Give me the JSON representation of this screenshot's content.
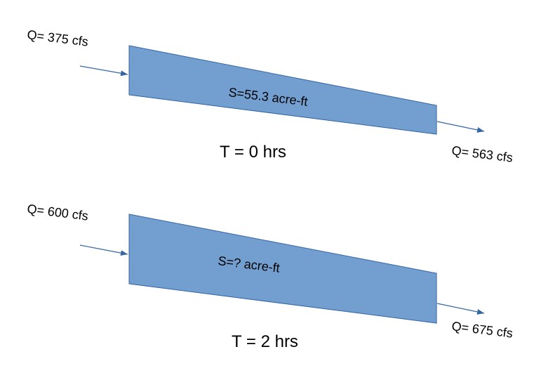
{
  "colors": {
    "reach_fill": "#729fcf",
    "reach_stroke": "#3465a4",
    "arrow": "#3465a4",
    "text": "#000000"
  },
  "scenarios": [
    {
      "inflow_label": "Q= 375 cfs",
      "storage_label": "S=55.3 acre-ft",
      "outflow_label": "Q= 563 cfs",
      "time_label": "T = 0 hrs"
    },
    {
      "inflow_label": "Q= 600 cfs",
      "storage_label": "S=? acre-ft",
      "outflow_label": "Q= 675 cfs",
      "time_label": "T = 2 hrs"
    }
  ]
}
